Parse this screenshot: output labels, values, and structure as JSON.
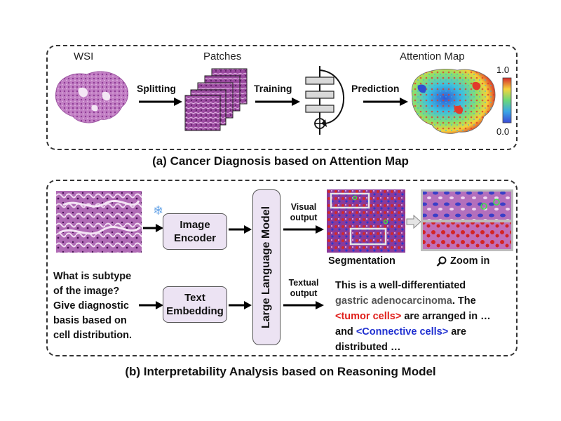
{
  "part_a": {
    "title": "(a) Cancer Diagnosis based on Attention Map",
    "wsi_label": "WSI",
    "patches_label": "Patches",
    "attention_label": "Attention Map",
    "step_splitting": "Splitting",
    "step_training": "Training",
    "step_prediction": "Prediction",
    "colorbar_max": "1.0",
    "colorbar_min": "0.0"
  },
  "part_b": {
    "title": "(b) Interpretability Analysis based on Reasoning Model",
    "image_encoder": [
      "Image",
      "Encoder"
    ],
    "text_embedding": [
      "Text",
      "Embedding"
    ],
    "llm": "Large Language Model",
    "visual_output": [
      "Visual",
      "output"
    ],
    "textual_output": [
      "Textual",
      "output"
    ],
    "segmentation": "Segmentation",
    "zoom": "Zoom in",
    "question": [
      "What is subtype",
      "of the image?",
      "Give diagnostic",
      "basis based on",
      "cell distribution."
    ],
    "answer": {
      "l1": "This is a well-differentiated",
      "l2a": "gastric adenocarcinoma",
      "l2b": ". The",
      "l3a": "<tumor cells>",
      "l3b": " are arranged in  …",
      "l4a": "and ",
      "l4b": "<Connective cells>",
      "l4c": " are",
      "l5": "distributed …"
    }
  },
  "icons": [
    "snowflake-icon",
    "magnifier-icon"
  ],
  "colors": {
    "module_fill": "#ece3f3",
    "tumor": "#e0201c",
    "connective": "#1f2fd0",
    "tissue": "#a64fa6"
  }
}
